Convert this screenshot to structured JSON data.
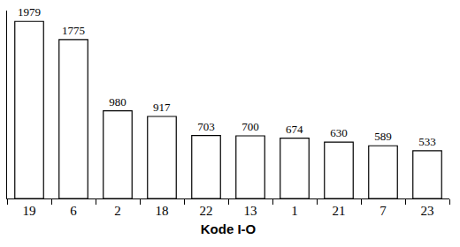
{
  "chart_data": {
    "type": "bar",
    "x_label": "Kode I-O",
    "categories": [
      "19",
      "6",
      "2",
      "18",
      "22",
      "13",
      "1",
      "21",
      "7",
      "23"
    ],
    "values": [
      1979,
      1775,
      980,
      917,
      703,
      700,
      674,
      630,
      589,
      533
    ],
    "color": "#ffffff",
    "ylim": [
      0,
      2100
    ],
    "yticks": [],
    "data_labels": true,
    "tick_labels": "x",
    "grid": false
  }
}
